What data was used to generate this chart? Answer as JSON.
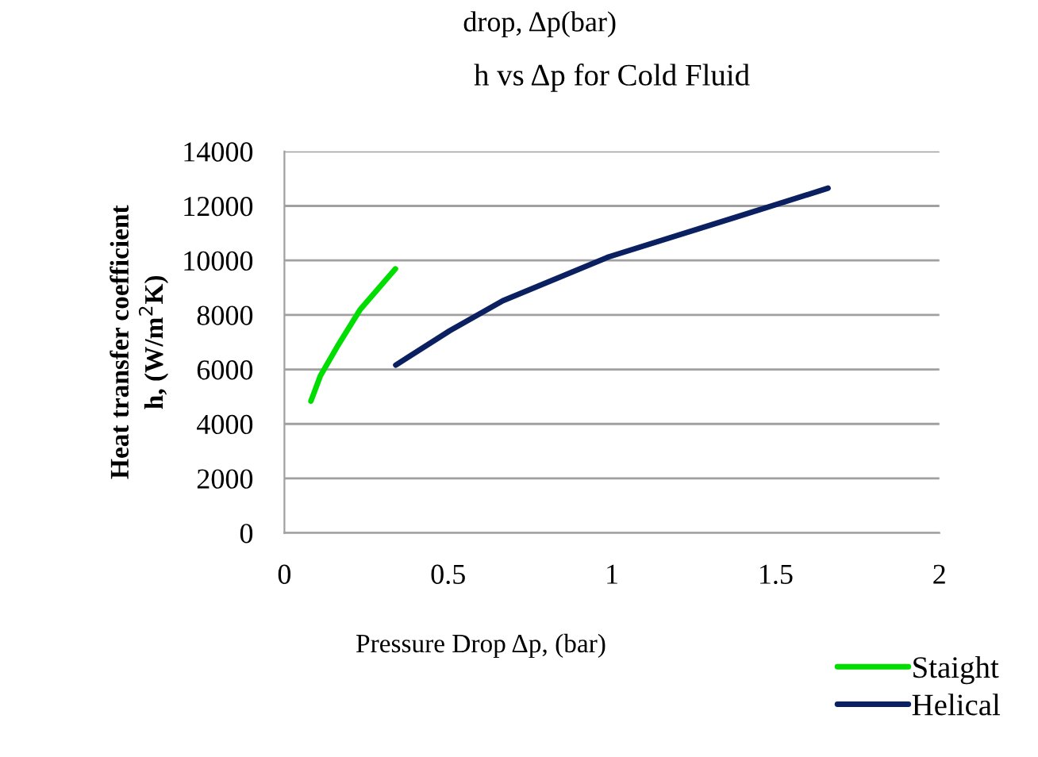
{
  "chart_data": {
    "type": "line",
    "title": "h vs Δp for Cold Fluid",
    "xlabel": "Pressure Drop Δp, (bar)",
    "ylabel": "Heat transfer coefficient\nh, (W/m$^{2}$K)",
    "annotations": [
      "drop, Δp(bar)"
    ],
    "xlim": [
      0,
      2
    ],
    "xticks": [
      0,
      0.5,
      1,
      1.5,
      2
    ],
    "ylim": [
      0,
      14000
    ],
    "yticks": [
      0,
      2000,
      4000,
      6000,
      8000,
      10000,
      12000,
      14000
    ],
    "grid": "y",
    "legend": "bottom right",
    "marker": "none",
    "line_style": "solid",
    "series": [
      {
        "name": "Staight",
        "color": "#00dd00",
        "x": [
          0.081,
          0.11,
          0.166,
          0.231,
          0.339
        ],
        "values": [
          4840,
          5770,
          6930,
          8190,
          9690
        ]
      },
      {
        "name": "Helical",
        "color": "#0a2060",
        "x": [
          0.34,
          0.505,
          0.667,
          0.99,
          1.377,
          1.66
        ],
        "values": [
          6160,
          7420,
          8520,
          10130,
          11580,
          12650
        ]
      }
    ]
  }
}
